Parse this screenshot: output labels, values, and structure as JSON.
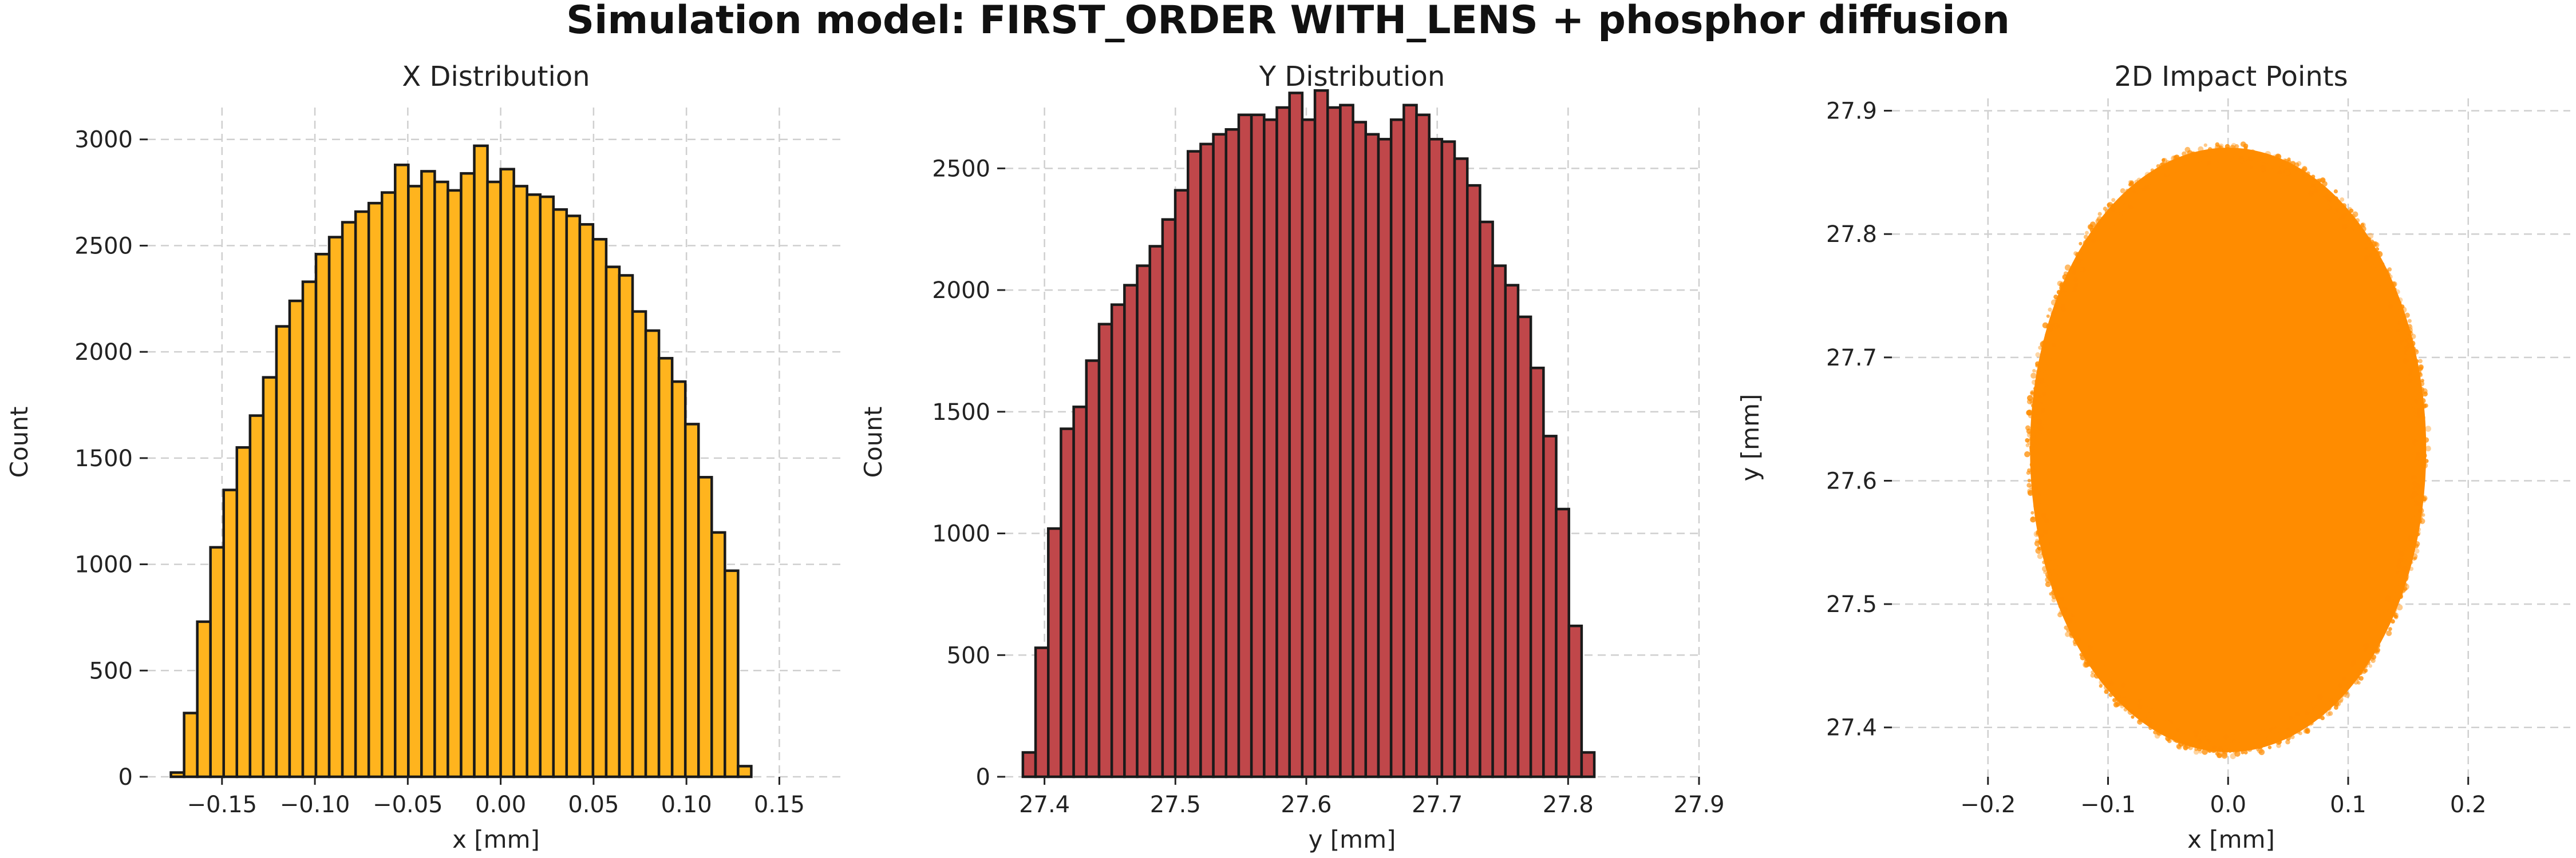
{
  "figure": {
    "suptitle": "Simulation model: FIRST_ORDER WITH_LENS + phosphor diffusion"
  },
  "chart_data": [
    {
      "type": "histogram",
      "title": "X Distribution",
      "xlabel": "x [mm]",
      "ylabel": "Count",
      "color": "#FFB41E",
      "edge_color": "#1a1a1a",
      "grid": true,
      "xlim": [
        -0.19,
        0.185
      ],
      "ylim": [
        0,
        3150
      ],
      "xticks": [
        -0.15,
        -0.1,
        -0.05,
        0.0,
        0.05,
        0.1,
        0.15
      ],
      "xtick_labels": [
        "−0.15",
        "−0.10",
        "−0.05",
        "0.00",
        "0.05",
        "0.10",
        "0.15"
      ],
      "yticks": [
        0,
        500,
        1000,
        1500,
        2000,
        2500,
        3000
      ],
      "yticks_labels": [
        "0",
        "500",
        "1000",
        "1500",
        "2000",
        "2500",
        "3000"
      ],
      "bin_start": -0.1775,
      "bin_width": 0.0071,
      "values": [
        20,
        300,
        730,
        1080,
        1350,
        1550,
        1700,
        1880,
        2120,
        2240,
        2330,
        2460,
        2540,
        2610,
        2660,
        2700,
        2750,
        2880,
        2780,
        2850,
        2800,
        2760,
        2840,
        2970,
        2800,
        2860,
        2780,
        2740,
        2730,
        2670,
        2640,
        2600,
        2530,
        2400,
        2360,
        2190,
        2100,
        1970,
        1860,
        1660,
        1410,
        1150,
        970,
        50
      ]
    },
    {
      "type": "histogram",
      "title": "Y Distribution",
      "xlabel": "y [mm]",
      "ylabel": "Count",
      "color": "#C0474A",
      "edge_color": "#1a1a1a",
      "grid": true,
      "xlim": [
        27.37,
        27.9
      ],
      "ylim": [
        0,
        2750
      ],
      "xticks": [
        27.4,
        27.5,
        27.6,
        27.7,
        27.8,
        27.9
      ],
      "xtick_labels": [
        "27.4",
        "27.5",
        "27.6",
        "27.7",
        "27.8",
        "27.9"
      ],
      "yticks": [
        0,
        500,
        1000,
        1500,
        2000,
        2500
      ],
      "yticks_labels": [
        "0",
        "500",
        "1000",
        "1500",
        "2000",
        "2500"
      ],
      "bin_start": 27.3835,
      "bin_width": 0.0097,
      "values": [
        100,
        530,
        1020,
        1430,
        1520,
        1710,
        1860,
        1940,
        2020,
        2100,
        2180,
        2290,
        2410,
        2570,
        2600,
        2640,
        2660,
        2720,
        2720,
        2700,
        2750,
        2810,
        2700,
        2820,
        2750,
        2760,
        2690,
        2640,
        2620,
        2700,
        2760,
        2720,
        2620,
        2610,
        2540,
        2430,
        2280,
        2100,
        2020,
        1890,
        1680,
        1400,
        1100,
        620,
        100
      ]
    },
    {
      "type": "scatter",
      "title": "2D Impact Points",
      "xlabel": "x [mm]",
      "ylabel": "y [mm]",
      "color": "#FF8C00",
      "grid": true,
      "xlim": [
        -0.28,
        0.285
      ],
      "ylim": [
        27.36,
        27.91
      ],
      "xticks": [
        -0.2,
        -0.1,
        0.0,
        0.1,
        0.2
      ],
      "xtick_labels": [
        "−0.2",
        "−0.1",
        "0.0",
        "0.1",
        "0.2"
      ],
      "yticks": [
        27.4,
        27.5,
        27.6,
        27.7,
        27.8,
        27.9
      ],
      "yticks_labels": [
        "27.4",
        "27.5",
        "27.6",
        "27.7",
        "27.8",
        "27.9"
      ],
      "cloud_center": [
        0.0,
        27.625
      ],
      "cloud_semi_axes": [
        0.165,
        0.245
      ]
    }
  ]
}
